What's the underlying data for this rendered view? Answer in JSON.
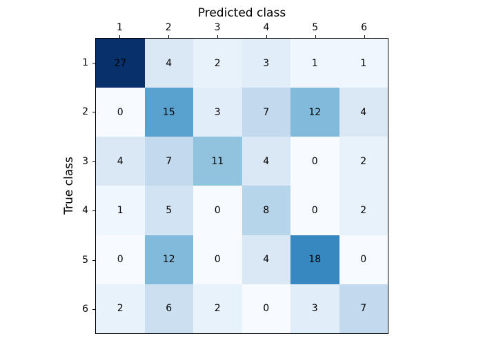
{
  "figure": {
    "background_color": "#ffffff",
    "text_color": "#000000"
  },
  "chart_data": {
    "type": "heatmap",
    "title": "Predicted class",
    "xlabel": "Predicted class",
    "ylabel": "True class",
    "xlabel_position": "top",
    "x_tick_labels": [
      "1",
      "2",
      "3",
      "4",
      "5",
      "6"
    ],
    "y_tick_labels": [
      "1",
      "2",
      "3",
      "4",
      "5",
      "6"
    ],
    "values": [
      [
        27,
        4,
        2,
        3,
        1,
        1
      ],
      [
        0,
        15,
        3,
        7,
        12,
        4
      ],
      [
        4,
        7,
        11,
        4,
        0,
        2
      ],
      [
        1,
        5,
        0,
        8,
        0,
        2
      ],
      [
        0,
        12,
        0,
        4,
        18,
        0
      ],
      [
        2,
        6,
        2,
        0,
        3,
        7
      ]
    ],
    "cell_colors": [
      [
        "#08306b",
        "#dae8f6",
        "#e8f2fa",
        "#e1edf8",
        "#f0f6fd",
        "#f0f6fd"
      ],
      [
        "#f7fbff",
        "#59a2cf",
        "#e1edf8",
        "#c3daee",
        "#82badb",
        "#dae8f6"
      ],
      [
        "#dae8f6",
        "#c3daee",
        "#91c3de",
        "#dae8f6",
        "#f7fbff",
        "#e8f2fa"
      ],
      [
        "#f0f6fd",
        "#d2e3f3",
        "#f7fbff",
        "#b7d5ea",
        "#f7fbff",
        "#e8f2fa"
      ],
      [
        "#f7fbff",
        "#82badb",
        "#f7fbff",
        "#dae8f6",
        "#3787c0",
        "#f7fbff"
      ],
      [
        "#e8f2fa",
        "#cbdff1",
        "#e8f2fa",
        "#f7fbff",
        "#e1edf8",
        "#c3daee"
      ]
    ],
    "colormap": "Blues",
    "colormap_min_color": "#f7fbff",
    "colormap_max_color": "#08306b",
    "vmin": 0,
    "vmax": 27,
    "annotation_color": "#000000",
    "axis_color": "#000000",
    "grid": false,
    "legend": "none"
  }
}
